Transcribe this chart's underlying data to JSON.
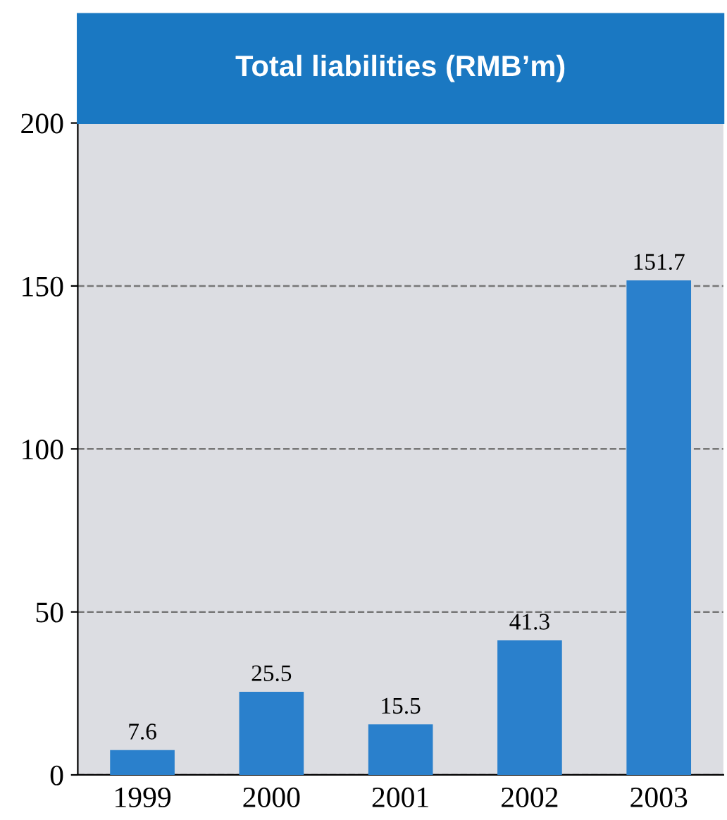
{
  "chart_data": {
    "type": "bar",
    "title": "Total liabilities (RMB’m)",
    "categories": [
      "1999",
      "2000",
      "2001",
      "2002",
      "2003"
    ],
    "values": [
      7.6,
      25.5,
      15.5,
      41.3,
      151.7
    ],
    "color": "#2a80cc",
    "ylim": [
      0,
      200
    ],
    "yticks": [
      0,
      50,
      100,
      150,
      200
    ],
    "grid": "y",
    "data_labels": true
  }
}
